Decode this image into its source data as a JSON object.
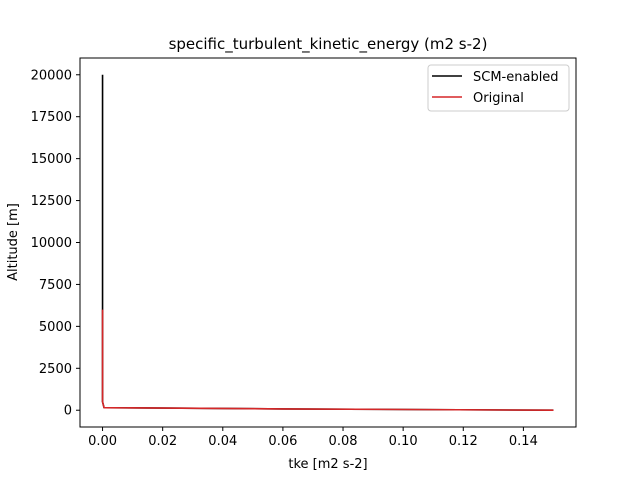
{
  "chart_data": {
    "type": "line",
    "title": "specific_turbulent_kinetic_energy (m2 s-2)",
    "xlabel": "tke [m2 s-2]",
    "ylabel": "Altitude [m]",
    "xlim": [
      -0.0075,
      0.1575
    ],
    "ylim": [
      -1000,
      21000
    ],
    "xticks": [
      0.0,
      0.02,
      0.04,
      0.06,
      0.08,
      0.1,
      0.12,
      0.14
    ],
    "xtick_labels": [
      "0.00",
      "0.02",
      "0.04",
      "0.06",
      "0.08",
      "0.10",
      "0.12",
      "0.14"
    ],
    "yticks": [
      0,
      2500,
      5000,
      7500,
      10000,
      12500,
      15000,
      17500,
      20000
    ],
    "ytick_labels": [
      "0",
      "2500",
      "5000",
      "7500",
      "10000",
      "12500",
      "15000",
      "17500",
      "20000"
    ],
    "grid": false,
    "legend_position": "top-right",
    "series": [
      {
        "name": "SCM-enabled",
        "color": "#000000",
        "points": [
          [
            0.0,
            20000
          ],
          [
            0.0,
            6000
          ],
          [
            0.0,
            500
          ],
          [
            0.0005,
            150
          ],
          [
            0.06,
            80
          ],
          [
            0.15,
            0
          ]
        ]
      },
      {
        "name": "Original",
        "color": "#d62728",
        "points": [
          [
            0.0,
            6000
          ],
          [
            0.0,
            500
          ],
          [
            0.0005,
            150
          ],
          [
            0.06,
            80
          ],
          [
            0.15,
            0
          ]
        ]
      }
    ]
  }
}
